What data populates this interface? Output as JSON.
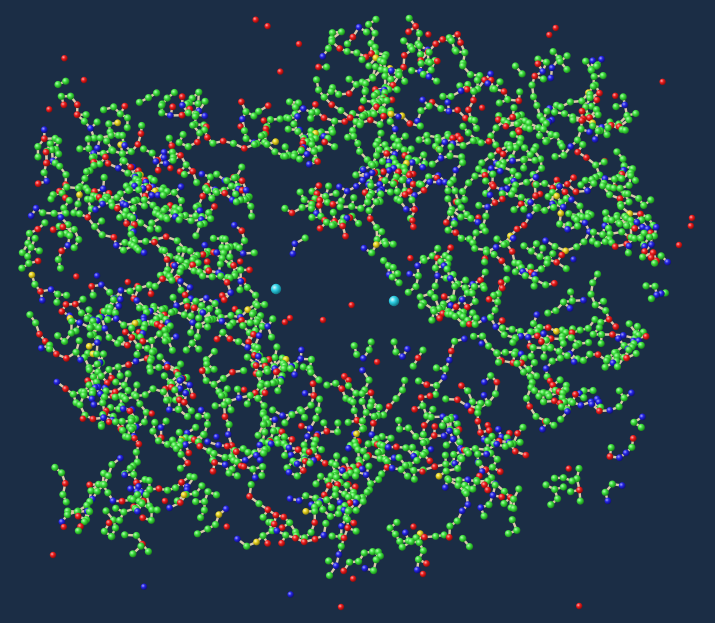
{
  "viewer": {
    "background_color": "#1b2d45",
    "representation": "ball-and-stick",
    "atom_colors": {
      "carbon": "#3fe03f",
      "oxygen": "#ee1c1c",
      "nitrogen": "#2323e6",
      "sulfur": "#e6d21e",
      "metal_ion": "#2fd0e6",
      "bond": "#d9c9a8"
    },
    "ions_shown": 2,
    "has_central_cavity": true
  }
}
